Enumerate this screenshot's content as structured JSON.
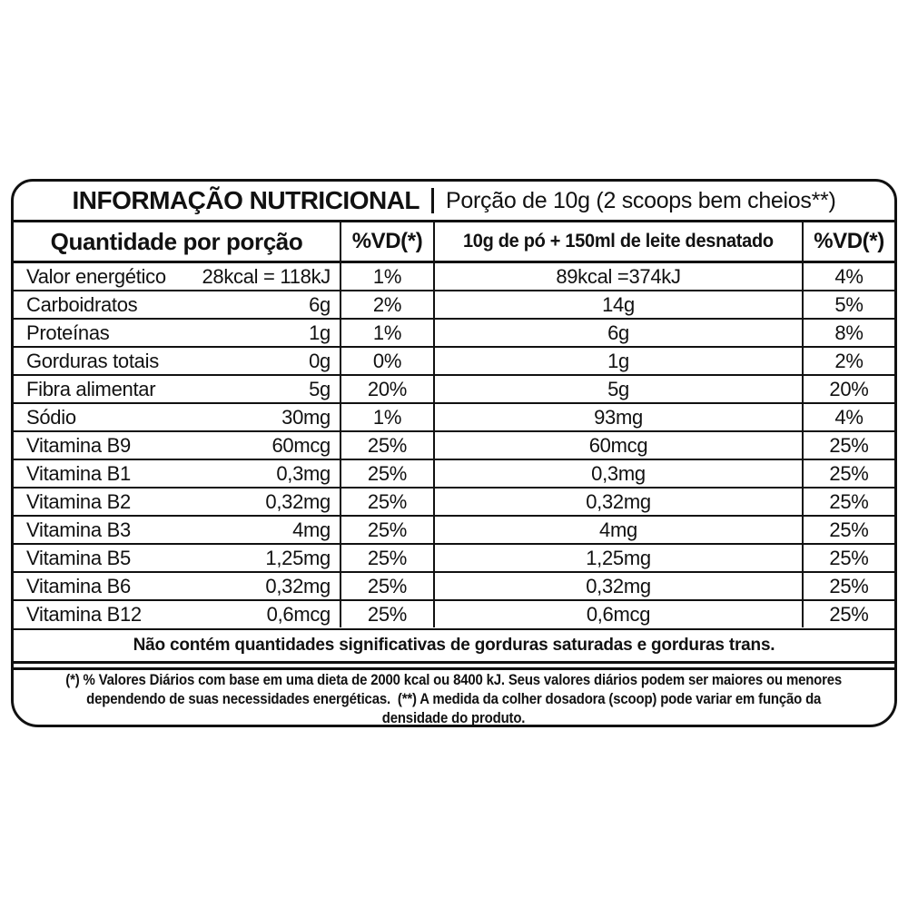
{
  "header": {
    "title": "INFORMAÇÃO NUTRICIONAL",
    "portion": "Porção de 10g (2 scoops bem cheios**)"
  },
  "columns": {
    "quantity_per_portion": "Quantidade por porção",
    "vd_portion": "%VD(*)",
    "with_milk": "10g de pó + 150ml de leite desnatado",
    "vd_milk": "%VD(*)"
  },
  "rows": [
    {
      "name": "Valor energético",
      "amount": "28kcal = 118kJ",
      "vd1": "1%",
      "milk": "89kcal =374kJ",
      "vd2": "4%"
    },
    {
      "name": "Carboidratos",
      "amount": "6g",
      "vd1": "2%",
      "milk": "14g",
      "vd2": "5%"
    },
    {
      "name": "Proteínas",
      "amount": "1g",
      "vd1": "1%",
      "milk": "6g",
      "vd2": "8%"
    },
    {
      "name": "Gorduras totais",
      "amount": "0g",
      "vd1": "0%",
      "milk": "1g",
      "vd2": "2%"
    },
    {
      "name": "Fibra alimentar",
      "amount": "5g",
      "vd1": "20%",
      "milk": "5g",
      "vd2": "20%"
    },
    {
      "name": "Sódio",
      "amount": "30mg",
      "vd1": "1%",
      "milk": "93mg",
      "vd2": "4%"
    },
    {
      "name": "Vitamina B9",
      "amount": "60mcg",
      "vd1": "25%",
      "milk": "60mcg",
      "vd2": "25%"
    },
    {
      "name": "Vitamina B1",
      "amount": "0,3mg",
      "vd1": "25%",
      "milk": "0,3mg",
      "vd2": "25%"
    },
    {
      "name": "Vitamina B2",
      "amount": "0,32mg",
      "vd1": "25%",
      "milk": "0,32mg",
      "vd2": "25%"
    },
    {
      "name": "Vitamina B3",
      "amount": "4mg",
      "vd1": "25%",
      "milk": "4mg",
      "vd2": "25%"
    },
    {
      "name": "Vitamina B5",
      "amount": "1,25mg",
      "vd1": "25%",
      "milk": "1,25mg",
      "vd2": "25%"
    },
    {
      "name": "Vitamina B6",
      "amount": "0,32mg",
      "vd1": "25%",
      "milk": "0,32mg",
      "vd2": "25%"
    },
    {
      "name": "Vitamina B12",
      "amount": "0,6mcg",
      "vd1": "25%",
      "milk": "0,6mcg",
      "vd2": "25%"
    }
  ],
  "notes": {
    "no_significant": "Não contém quantidades significativas de gorduras saturadas e gorduras trans.",
    "footnote_lines": [
      "(*) % Valores Diários com base em uma dieta de 2000 kcal ou 8400 kJ. Seus valores diários podem ser maiores ou menores",
      "dependendo de suas necessidades energéticas.  (**) A medida da colher dosadora (scoop) pode variar em função da",
      "densidade do produto."
    ]
  },
  "colors": {
    "border": "#111111",
    "text": "#111111",
    "background": "#ffffff"
  }
}
